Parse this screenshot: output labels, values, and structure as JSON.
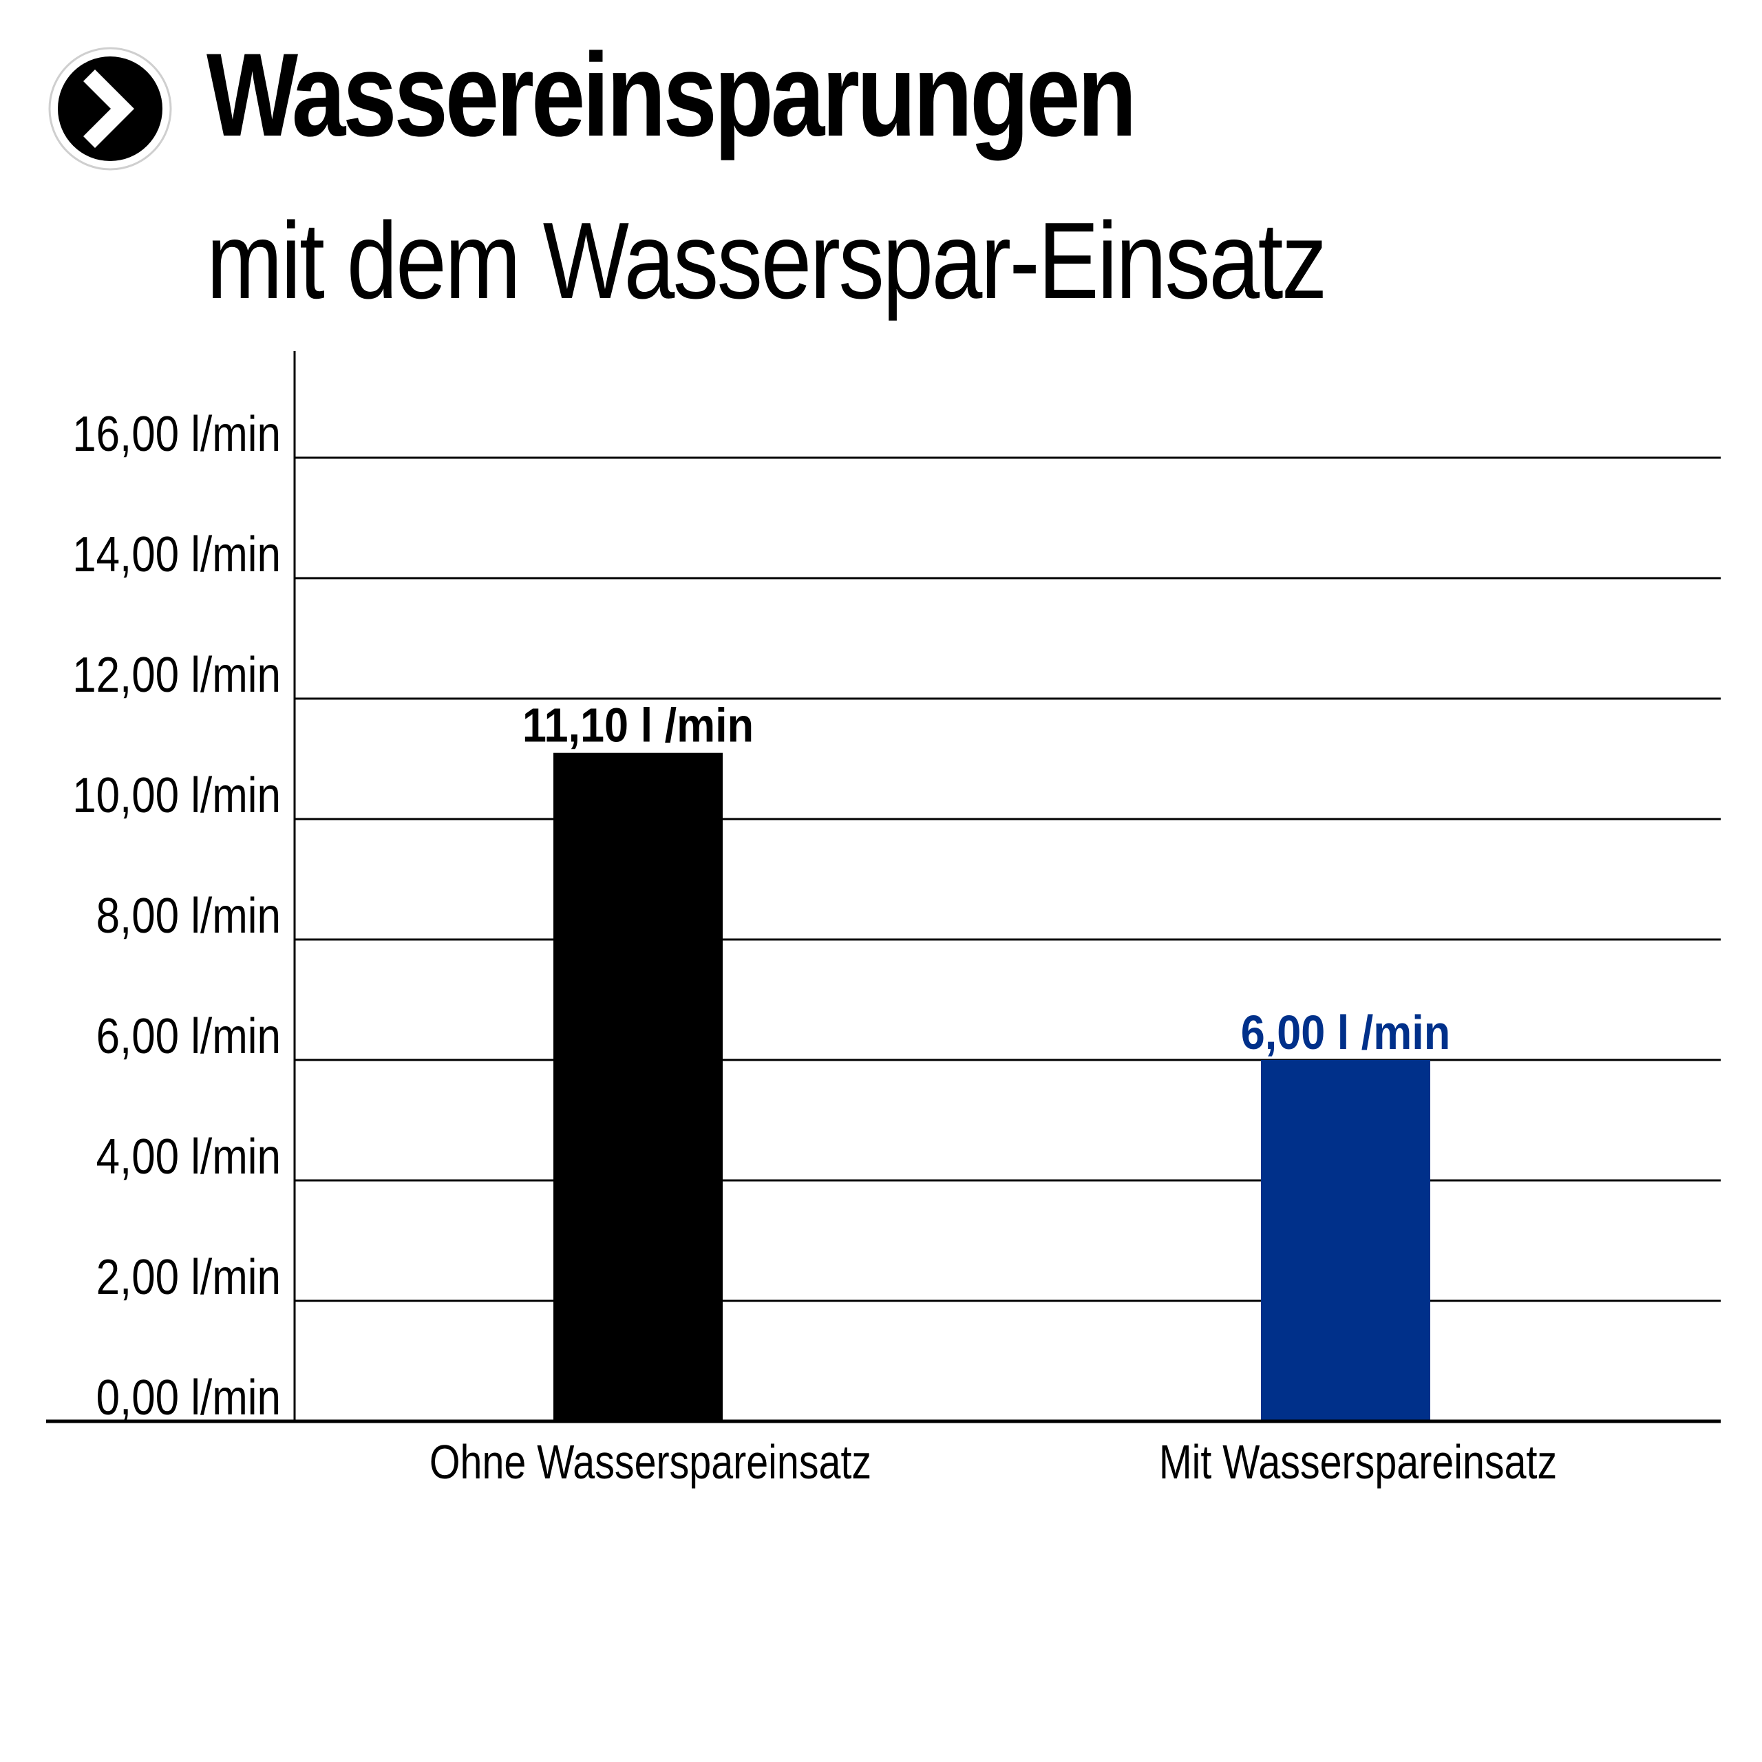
{
  "header": {
    "icon": "chevron-right-circle-icon",
    "title": "Wassereinsparungen",
    "subtitle": "mit dem Wasserspar-Einsatz"
  },
  "chart_data": {
    "type": "bar",
    "categories": [
      "Ohne Wasserspareinsatz",
      "Mit Wasserspareinsatz"
    ],
    "values": [
      11.1,
      6.0
    ],
    "value_labels": [
      "11,10 l /min",
      "6,00 l /min"
    ],
    "bar_colors": [
      "#000000",
      "#00308a"
    ],
    "ylim": [
      0,
      16
    ],
    "y_ticks": [
      0,
      2,
      4,
      6,
      8,
      10,
      12,
      14,
      16
    ],
    "y_tick_labels": [
      "0,00 l/min",
      "2,00 l/min",
      "4,00 l/min",
      "6,00 l/min",
      "8,00 l/min",
      "10,00 l/min",
      "12,00 l/min",
      "14,00 l/min",
      "16,00 l/min"
    ],
    "grid": true,
    "legend": "none"
  }
}
